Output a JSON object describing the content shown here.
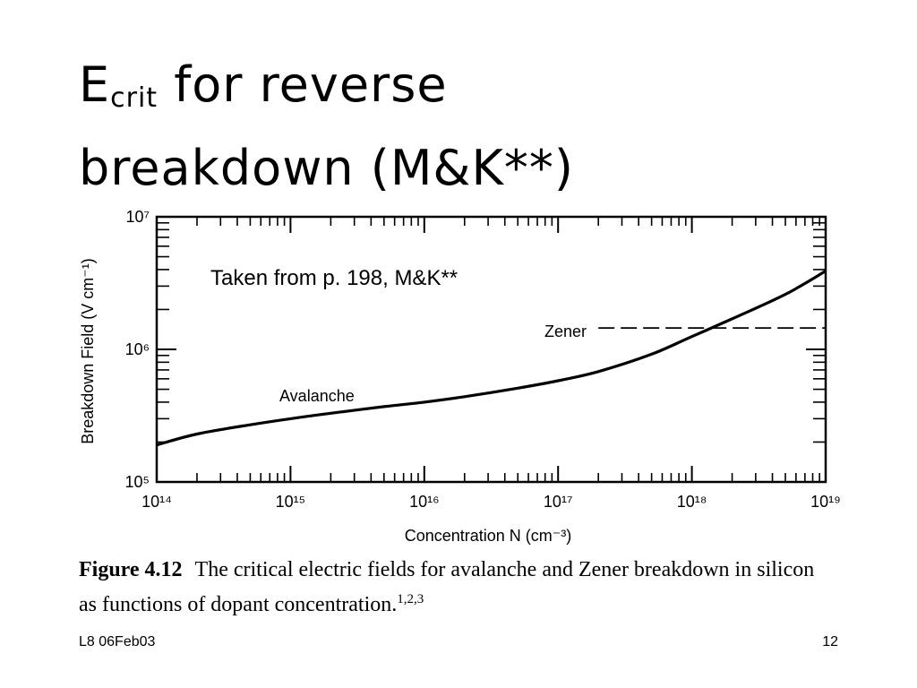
{
  "slide": {
    "title_main": "E",
    "title_sub": "crit",
    "title_rest": " for reverse",
    "title_line2": "breakdown (M&K**)",
    "caption_fig": "Figure 4.12",
    "caption_text": "The critical electric fields for avalanche and Zener breakdown in silicon as functions of dopant concentration.",
    "caption_refs": "1,2,3",
    "footer_left": "L8 06Feb03",
    "footer_right": "12"
  },
  "chart_data": {
    "type": "line",
    "title": "",
    "annotation": "Taken from p. 198, M&K**",
    "xlabel": "Concentration N (cm⁻³)",
    "ylabel": "Breakdown Field (V cm⁻¹)",
    "xscale": "log",
    "yscale": "log",
    "xlim": [
      100000000000000.0,
      1e+19
    ],
    "ylim": [
      100000.0,
      10000000.0
    ],
    "x_ticks": [
      "10¹⁴",
      "10¹⁵",
      "10¹⁶",
      "10¹⁷",
      "10¹⁸",
      "10¹⁹"
    ],
    "y_ticks": [
      "10⁵",
      "10⁶",
      "10⁷"
    ],
    "series": [
      {
        "name": "Avalanche",
        "style": "solid",
        "x": [
          100000000000000.0,
          200000000000000.0,
          500000000000000.0,
          1000000000000000.0,
          2000000000000000.0,
          5000000000000000.0,
          1e+16,
          2e+16,
          5e+16,
          1e+17,
          2e+17,
          5e+17,
          1e+18,
          2e+18,
          5e+18,
          1e+19
        ],
        "y": [
          190000,
          230000,
          270000,
          300000,
          330000,
          370000,
          400000,
          440000,
          510000,
          580000,
          680000,
          920000,
          1250000,
          1700000,
          2600000,
          3900000
        ]
      },
      {
        "name": "Zener",
        "style": "dashed",
        "x": [
          2e+17,
          1e+19
        ],
        "y": [
          1450000,
          1450000
        ]
      }
    ],
    "grid": false
  }
}
